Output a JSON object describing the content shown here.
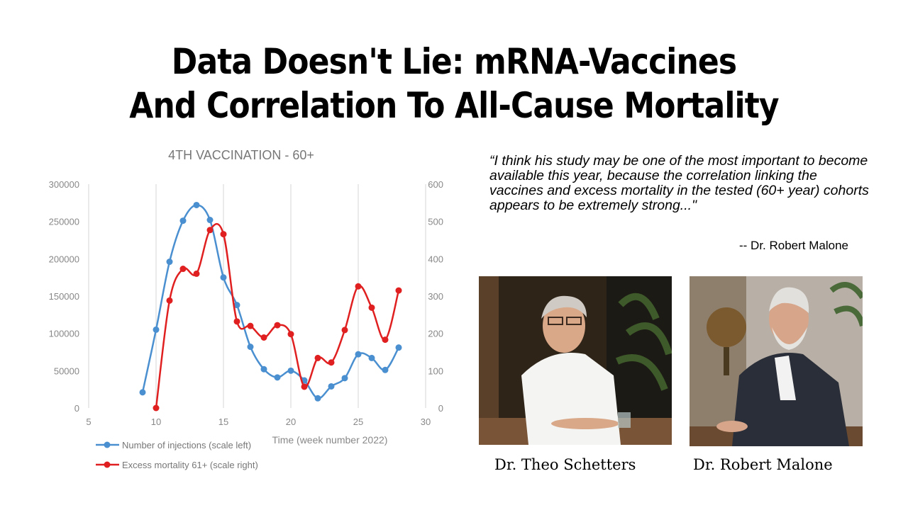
{
  "headline": {
    "line1": "Data Doesn't Lie: mRNA-Vaccines",
    "line2": "And Correlation To All-Cause Mortality"
  },
  "quote": {
    "text": "“I think his study may be one of the most important to become available this year, because the correlation linking the vaccines and excess mortality in the tested (60+ year) cohorts appears to be extremely strong...\"",
    "attribution": "-- Dr. Robert Malone"
  },
  "photos": {
    "left_caption": "Dr. Theo Schetters",
    "right_caption": "Dr. Robert Malone"
  },
  "chart_data": {
    "type": "line",
    "title": "4TH VACCINATION - 60+",
    "xlabel": "Time (week number 2022)",
    "xlim": [
      5,
      30
    ],
    "x_ticks": [
      5,
      10,
      15,
      20,
      25,
      30
    ],
    "y_left_lim": [
      0,
      300000
    ],
    "y_left_ticks": [
      0,
      50000,
      100000,
      150000,
      200000,
      250000,
      300000
    ],
    "y_right_lim": [
      0,
      600
    ],
    "y_right_ticks": [
      0,
      100,
      200,
      300,
      400,
      500,
      600
    ],
    "grid": "vertical",
    "legend_position": "bottom-left",
    "series": [
      {
        "name": "Number of injections (scale left)",
        "axis": "left",
        "color": "#4a8fd0",
        "x": [
          9,
          10,
          11,
          12,
          13,
          14,
          15,
          16,
          17,
          18,
          19,
          20,
          21,
          22,
          23,
          24,
          25,
          26,
          27,
          28
        ],
        "values": [
          21000,
          105000,
          196000,
          251000,
          272000,
          252000,
          175000,
          138000,
          82000,
          52000,
          41000,
          50000,
          37000,
          13000,
          29000,
          40000,
          72000,
          67000,
          51000,
          81000
        ]
      },
      {
        "name": "Excess mortality 61+ (scale right)",
        "axis": "right",
        "color": "#e02020",
        "x": [
          10,
          11,
          12,
          13,
          14,
          15,
          16,
          17,
          18,
          19,
          20,
          21,
          22,
          23,
          24,
          25,
          26,
          27,
          28
        ],
        "values": [
          0,
          288,
          373,
          360,
          477,
          466,
          232,
          220,
          189,
          222,
          198,
          57,
          134,
          122,
          209,
          326,
          269,
          183,
          315
        ]
      }
    ]
  }
}
